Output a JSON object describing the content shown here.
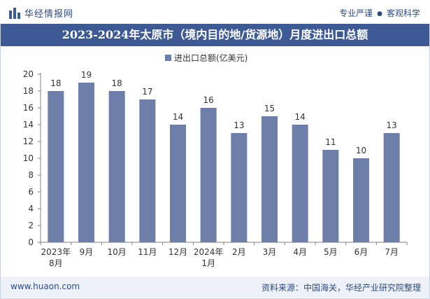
{
  "header": {
    "logo_text": "华经情报网",
    "slogan_left": "专业严谨",
    "slogan_right": "客观科学"
  },
  "colors": {
    "bar": "#6d7ea8",
    "title_bg": "#3e5a94",
    "text": "#333333"
  },
  "chart_data": {
    "type": "bar",
    "title": "2023-2024年太原市（境内目的地/货源地）月度进出口总额",
    "legend": "进出口总额(亿美元)",
    "legend_position": "top-center",
    "categories": [
      "2023年8月",
      "9月",
      "10月",
      "11月",
      "12月",
      "2024年1月",
      "2月",
      "3月",
      "4月",
      "5月",
      "6月",
      "7月"
    ],
    "values": [
      18,
      19,
      18,
      17,
      14,
      16,
      13,
      15,
      14,
      11,
      10,
      13
    ],
    "ylim": [
      0,
      20
    ],
    "yticks": [
      0,
      2,
      4,
      6,
      8,
      10,
      12,
      14,
      16,
      18,
      20
    ],
    "xlabel": "",
    "ylabel": "",
    "grid": false
  },
  "footer": {
    "website": "www.huaon.com",
    "source": "资料来源：中国海关，华经产业研究院整理"
  }
}
